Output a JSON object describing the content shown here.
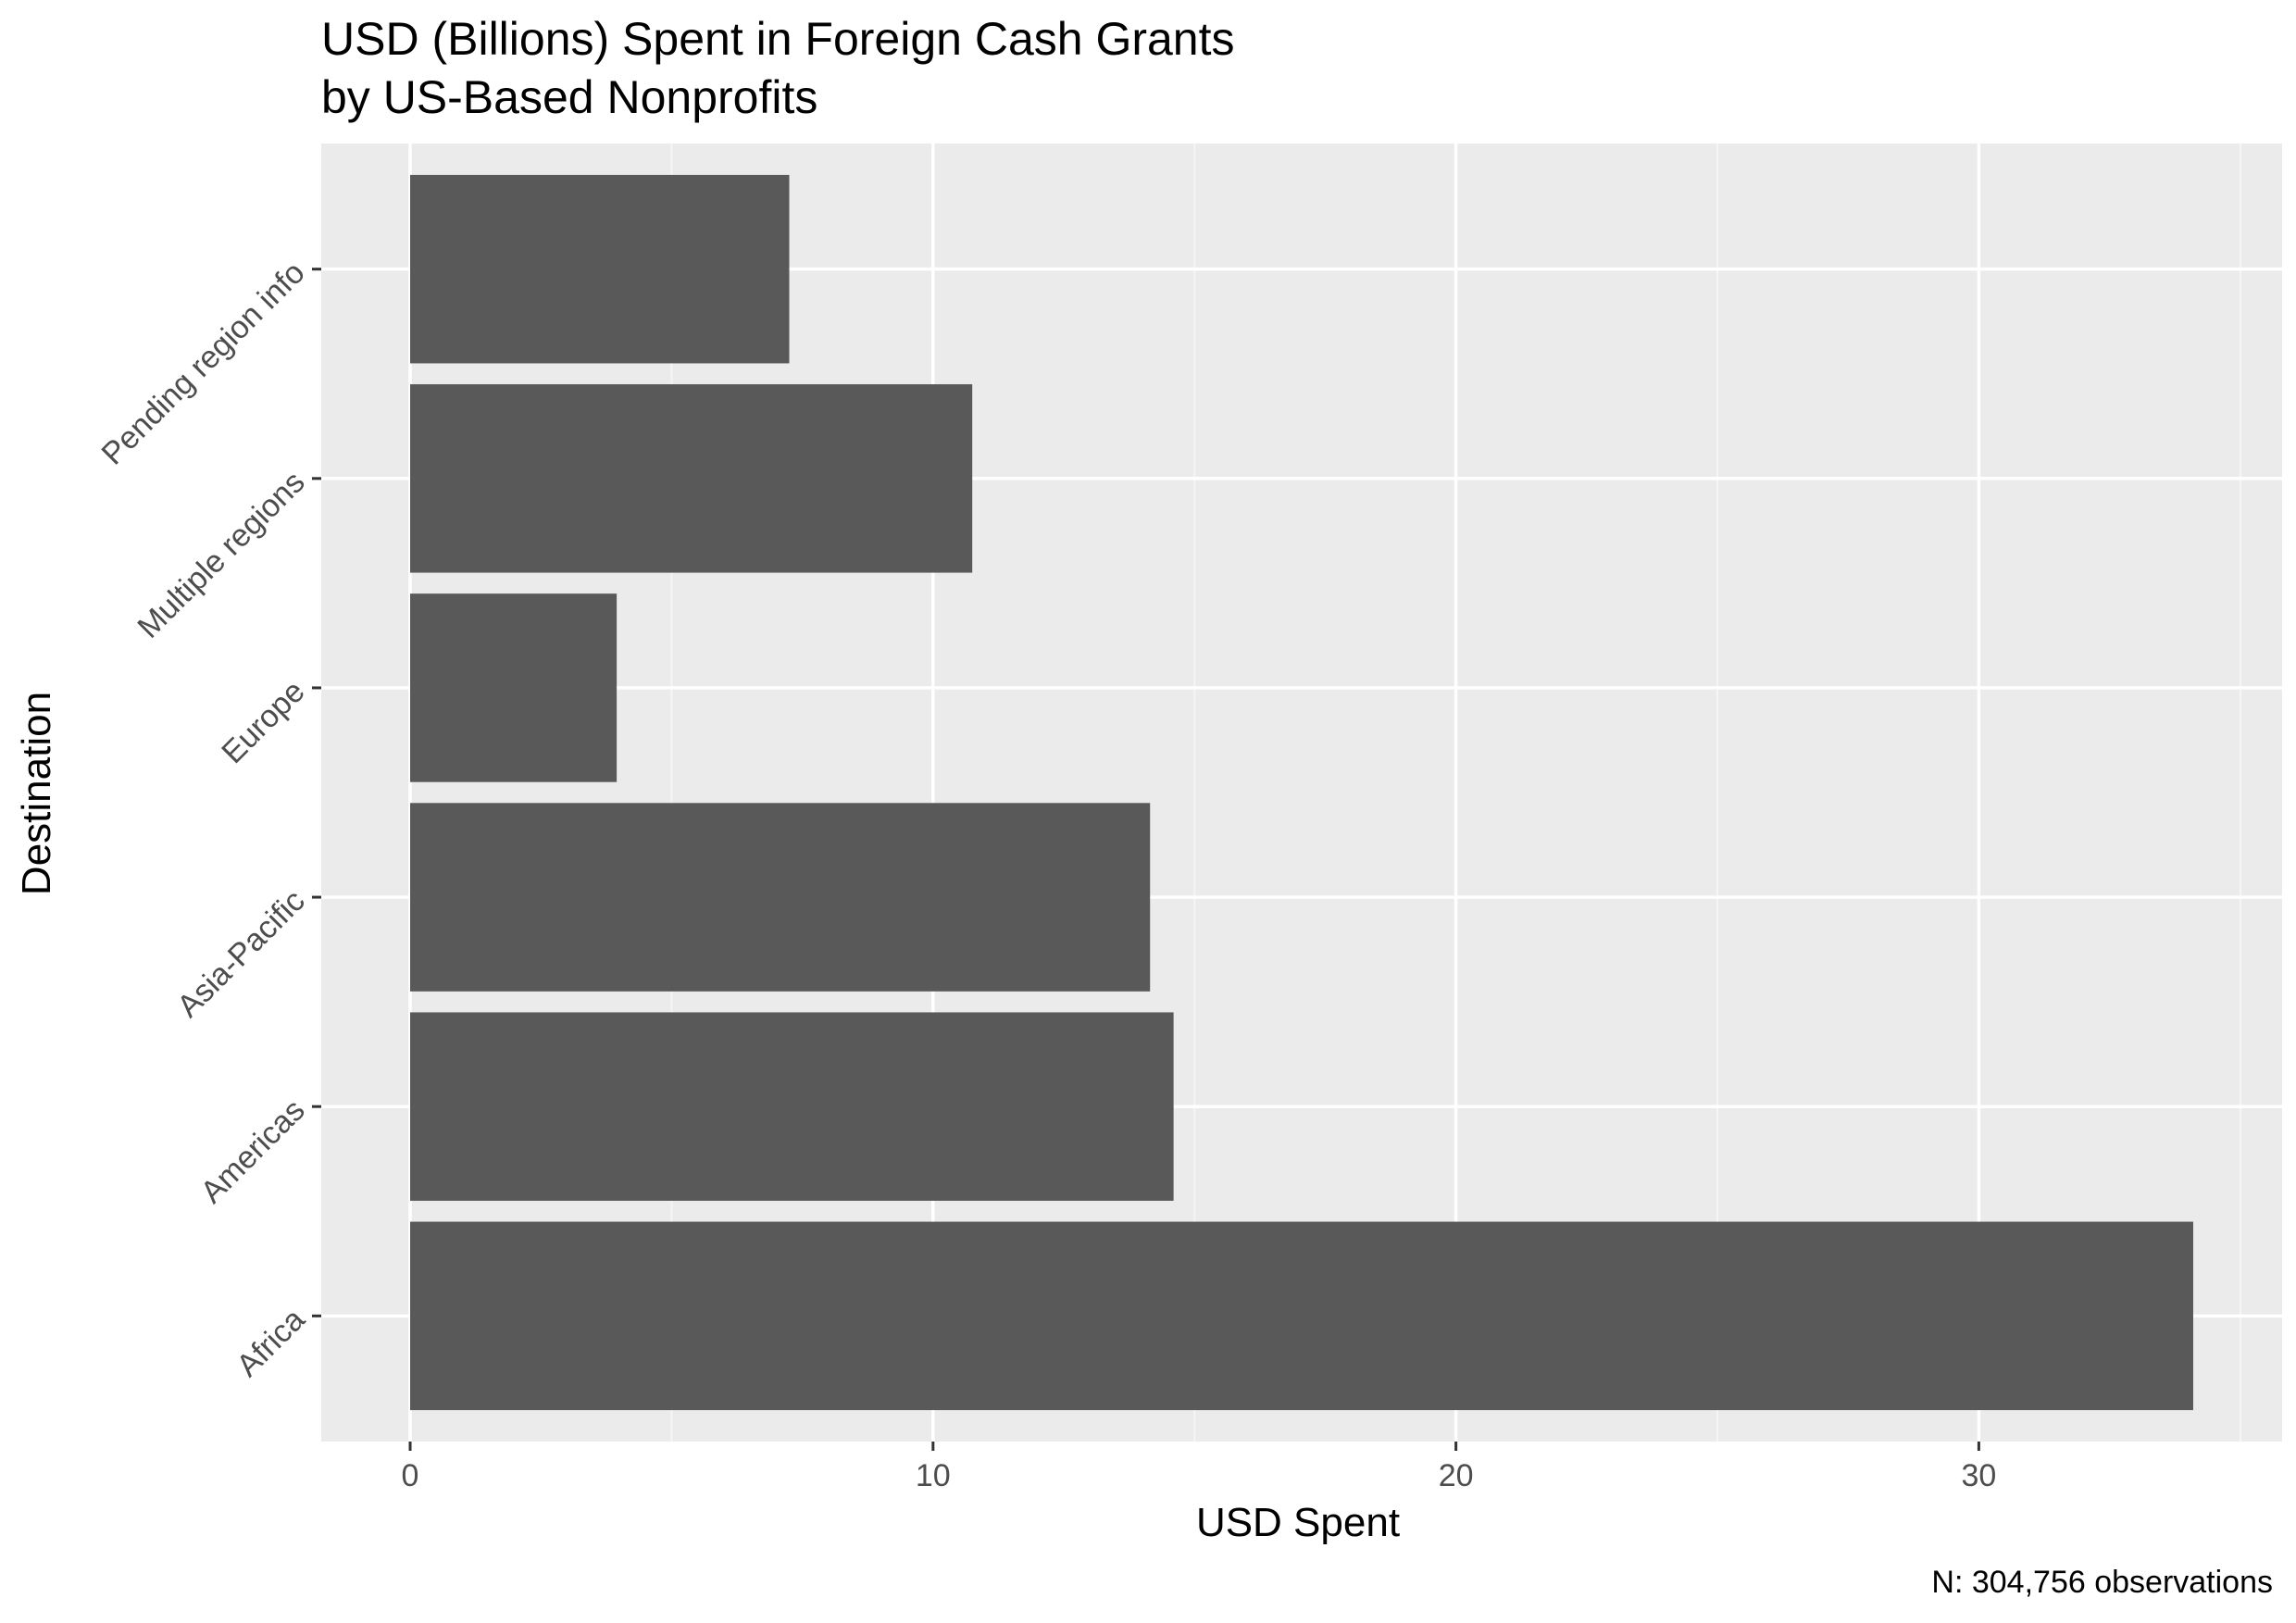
{
  "chart_data": {
    "type": "bar",
    "orientation": "horizontal",
    "title_lines": [
      "USD (Billions) Spent in Foreign Cash Grants",
      "by US-Based Nonprofits"
    ],
    "xlabel": "USD Spent",
    "ylabel": "Destination",
    "caption": "N: 304,756 observations",
    "categories": [
      "Africa",
      "Americas",
      "Asia-Pacific",
      "Europe",
      "Multiple regions",
      "Pending region info"
    ],
    "values": [
      34.1,
      14.6,
      14.15,
      3.95,
      10.75,
      7.25
    ],
    "xlim": [
      -1.7,
      35.8
    ],
    "xticks": [
      0,
      10,
      20,
      30
    ],
    "grid": true,
    "legend": "none",
    "colors": {
      "bar": "#595959",
      "panel": "#ebebeb",
      "grid_major": "#ffffff",
      "grid_minor": "#f5f5f5",
      "tick_label": "#4d4d4d",
      "text": "#000000"
    }
  }
}
